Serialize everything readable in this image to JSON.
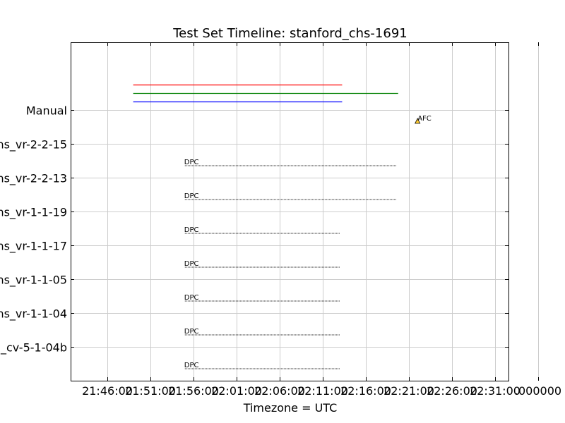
{
  "chart_data": {
    "type": "timeline",
    "title": "Test Set Timeline: stanford_chs-1691",
    "xlabel": "Timezone = UTC",
    "grid": true,
    "x_ticks": [
      "21:46:00",
      "21:51:00",
      "21:56:00",
      "22:01:00",
      "22:06:00",
      "22:11:00",
      "22:16:00",
      "22:21:00",
      "22:26:00",
      "22:31:00",
      "00000"
    ],
    "x_tick_labels": [
      "21:46:00",
      "21:51:00",
      "21:56:00",
      "22:01:00",
      "22:06:00",
      "22:11:00",
      "22:16:00",
      "22:21:00",
      "22:26:00",
      "22:31:00",
      ".000000"
    ],
    "xlim": [
      "21:46:00",
      "22:31:00"
    ],
    "y_labels": [
      "Manual",
      "ns_vr-2-2-15",
      "ns_vr-2-2-13",
      "ns_vr-1-1-19",
      "ns_vr-1-1-17",
      "ns_vr-1-1-05",
      "ns_vr-1-1-04",
      "_cv-5-1-04b"
    ],
    "summary_lines": [
      {
        "color": "#ff0000",
        "start": "21:49:00",
        "end": "22:13:15"
      },
      {
        "color": "#008000",
        "start": "21:49:00",
        "end": "22:19:45"
      },
      {
        "color": "#0000ff",
        "start": "21:49:00",
        "end": "22:13:15"
      }
    ],
    "rows": [
      {
        "label": "ns_vr-2-2-15",
        "marker": "DPC",
        "start": "21:55:00",
        "end": "22:19:35"
      },
      {
        "label": "ns_vr-2-2-13",
        "marker": "DPC",
        "start": "21:55:00",
        "end": "22:19:35"
      },
      {
        "label": "ns_vr-1-1-19",
        "marker": "DPC",
        "start": "21:55:00",
        "end": "22:13:00"
      },
      {
        "label": "ns_vr-1-1-17",
        "marker": "DPC",
        "start": "21:55:00",
        "end": "22:13:00"
      },
      {
        "label": "ns_vr-1-1-05",
        "marker": "DPC",
        "start": "21:55:00",
        "end": "22:13:00"
      },
      {
        "label": "ns_vr-1-1-04",
        "marker": "DPC",
        "start": "21:55:00",
        "end": "22:13:00"
      },
      {
        "label": "_cv-5-1-04b",
        "marker": "DPC",
        "start": "21:55:00",
        "end": "22:13:00"
      }
    ],
    "annotations": [
      {
        "text": "AFC",
        "time": "22:22:00",
        "row": "Manual",
        "marker": "triangle",
        "color": "#ffcc33"
      }
    ]
  }
}
